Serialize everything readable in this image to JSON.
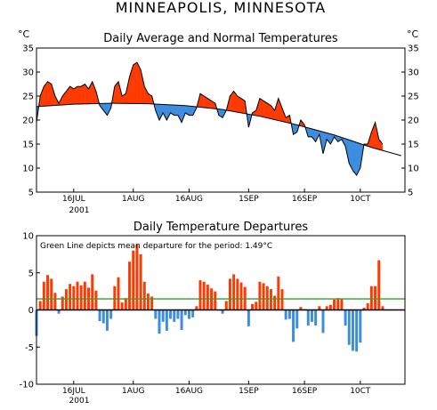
{
  "title": "MINNEAPOLIS, MINNESOTA",
  "chart_data": [
    {
      "type": "area",
      "title": "Daily Average and Normal Temperatures",
      "ylabel_left": "°C",
      "ylabel_right": "°C",
      "ylim": [
        5,
        35
      ],
      "yticks": [
        "5",
        "10",
        "15",
        "20",
        "25",
        "30",
        "35"
      ],
      "xlim": [
        "2001-07-06",
        "2001-10-13"
      ],
      "xticks": [
        {
          "date": "2001-07-16",
          "label": "16JUL"
        },
        {
          "date": "2001-08-01",
          "label": "1AUG"
        },
        {
          "date": "2001-08-16",
          "label": "16AUG"
        },
        {
          "date": "2001-09-01",
          "label": "1SEP"
        },
        {
          "date": "2001-09-16",
          "label": "16SEP"
        },
        {
          "date": "2001-10-01",
          "label": "10CT"
        }
      ],
      "year_label": "2001",
      "above_normal_color": "#ff3a00",
      "below_normal_color": "#3c8ce0",
      "series": [
        {
          "name": "Daily Average",
          "x": [
            "2001-07-06",
            "2001-07-07",
            "2001-07-08",
            "2001-07-09",
            "2001-07-10",
            "2001-07-11",
            "2001-07-12",
            "2001-07-13",
            "2001-07-14",
            "2001-07-15",
            "2001-07-16",
            "2001-07-17",
            "2001-07-18",
            "2001-07-19",
            "2001-07-20",
            "2001-07-21",
            "2001-07-22",
            "2001-07-23",
            "2001-07-24",
            "2001-07-25",
            "2001-07-26",
            "2001-07-27",
            "2001-07-28",
            "2001-07-29",
            "2001-07-30",
            "2001-07-31",
            "2001-08-01",
            "2001-08-02",
            "2001-08-03",
            "2001-08-04",
            "2001-08-05",
            "2001-08-06",
            "2001-08-07",
            "2001-08-08",
            "2001-08-09",
            "2001-08-10",
            "2001-08-11",
            "2001-08-12",
            "2001-08-13",
            "2001-08-14",
            "2001-08-15",
            "2001-08-16",
            "2001-08-17",
            "2001-08-18",
            "2001-08-19",
            "2001-08-20",
            "2001-08-21",
            "2001-08-22",
            "2001-08-23",
            "2001-08-24",
            "2001-08-25",
            "2001-08-26",
            "2001-08-27",
            "2001-08-28",
            "2001-08-29",
            "2001-08-30",
            "2001-08-31",
            "2001-09-01",
            "2001-09-02",
            "2001-09-03",
            "2001-09-04",
            "2001-09-05",
            "2001-09-06",
            "2001-09-07",
            "2001-09-08",
            "2001-09-09",
            "2001-09-10",
            "2001-09-11",
            "2001-09-12",
            "2001-09-13",
            "2001-09-14",
            "2001-09-15",
            "2001-09-16",
            "2001-09-17",
            "2001-09-18",
            "2001-09-19",
            "2001-09-20",
            "2001-09-21",
            "2001-09-22",
            "2001-09-23",
            "2001-09-24",
            "2001-09-25",
            "2001-09-26",
            "2001-09-27",
            "2001-09-28",
            "2001-09-29",
            "2001-09-30",
            "2001-10-01",
            "2001-10-02",
            "2001-10-03",
            "2001-10-04",
            "2001-10-05",
            "2001-10-06",
            "2001-10-07"
          ],
          "values": [
            19.5,
            25.0,
            27.0,
            28.0,
            27.5,
            25.0,
            23.5,
            25.0,
            26.0,
            27.0,
            26.5,
            27.0,
            27.0,
            27.5,
            26.5,
            28.0,
            26.0,
            23.0,
            22.0,
            21.0,
            22.5,
            27.0,
            28.0,
            25.0,
            25.5,
            29.0,
            31.5,
            32.0,
            30.5,
            27.0,
            25.5,
            25.0,
            22.0,
            20.0,
            21.5,
            20.0,
            21.5,
            21.0,
            21.0,
            19.5,
            21.5,
            21.0,
            21.0,
            22.5,
            25.5,
            25.0,
            24.5,
            24.0,
            23.5,
            21.0,
            20.5,
            22.0,
            25.0,
            26.0,
            25.0,
            24.5,
            24.0,
            18.5,
            21.5,
            22.0,
            24.5,
            24.0,
            23.5,
            23.0,
            22.0,
            24.5,
            22.5,
            20.5,
            21.0,
            17.0,
            17.5,
            20.0,
            19.0,
            16.5,
            16.5,
            15.5,
            17.0,
            13.0,
            16.0,
            15.0,
            16.5,
            15.5,
            16.0,
            14.5,
            11.0,
            9.5,
            8.5,
            10.0,
            15.0,
            15.0,
            17.5,
            19.5,
            16.0,
            15.0
          ]
        },
        {
          "name": "Normal",
          "x": [
            "2001-07-06",
            "2001-07-16",
            "2001-07-26",
            "2001-08-05",
            "2001-08-15",
            "2001-08-25",
            "2001-09-04",
            "2001-09-14",
            "2001-09-24",
            "2001-10-04",
            "2001-10-12"
          ],
          "values": [
            22.8,
            23.3,
            23.5,
            23.4,
            23.0,
            22.2,
            20.8,
            19.0,
            16.9,
            14.3,
            12.6
          ]
        }
      ]
    },
    {
      "type": "bar",
      "title": "Daily Temperature Departures",
      "ylim": [
        -10,
        10
      ],
      "yticks": [
        "-10",
        "-5",
        "0",
        "5",
        "10"
      ],
      "xlim": [
        "2001-07-06",
        "2001-10-13"
      ],
      "xticks": [
        {
          "date": "2001-07-16",
          "label": "16JUL"
        },
        {
          "date": "2001-08-01",
          "label": "1AUG"
        },
        {
          "date": "2001-08-16",
          "label": "16AUG"
        },
        {
          "date": "2001-09-01",
          "label": "1SEP"
        },
        {
          "date": "2001-09-16",
          "label": "16SEP"
        },
        {
          "date": "2001-10-01",
          "label": "10CT"
        }
      ],
      "year_label": "2001",
      "annotation": "Green Line depicts mean departure for the period: 1.49°C",
      "mean_departure": 1.49,
      "mean_line_color": "#33a02c",
      "positive_color": "#ff3a00",
      "negative_color": "#3c8ce0",
      "start_date": "2001-07-06",
      "values": [
        -3.5,
        1.2,
        3.8,
        4.7,
        4.2,
        2.3,
        -0.5,
        1.8,
        2.8,
        3.5,
        3.2,
        3.8,
        3.3,
        3.8,
        3.0,
        4.8,
        2.6,
        -1.5,
        -1.8,
        -2.8,
        -1.2,
        3.2,
        4.4,
        1.0,
        1.6,
        6.5,
        8.0,
        8.8,
        7.5,
        3.8,
        2.2,
        1.8,
        -1.2,
        -3.2,
        -1.6,
        -2.8,
        -1.2,
        -1.6,
        -1.2,
        -2.7,
        -0.7,
        -1.2,
        -1.0,
        0.5,
        4.0,
        3.8,
        3.4,
        2.9,
        2.5,
        0.0,
        -0.5,
        1.2,
        4.2,
        4.8,
        4.2,
        3.7,
        3.1,
        -2.2,
        0.8,
        1.1,
        3.8,
        3.6,
        3.2,
        2.8,
        1.9,
        4.5,
        2.8,
        -1.3,
        -1.2,
        -4.3,
        -2.5,
        0.4,
        0.1,
        -2.1,
        -1.6,
        -2.1,
        0.5,
        -3.1,
        0.5,
        0.7,
        1.4,
        1.6,
        1.5,
        -2.1,
        -4.7,
        -5.5,
        -5.6,
        -4.4,
        0.3,
        0.9,
        3.2,
        3.2,
        6.7,
        0.5
      ]
    }
  ]
}
